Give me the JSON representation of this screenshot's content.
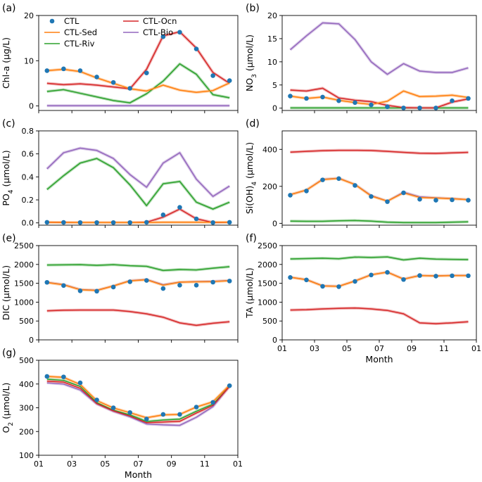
{
  "colors": {
    "CTL": "#1f77b4",
    "CTL-Sed": "#ff7f0e",
    "CTL-Riv": "#2ca02c",
    "CTL-Ocn": "#d62728",
    "CTL-Bio": "#9467bd",
    "spread": "#cccccc"
  },
  "legend": [
    "CTL",
    "CTL-Sed",
    "CTL-Riv",
    "CTL-Ocn",
    "CTL-Bio"
  ],
  "xticks": [
    "01",
    "03",
    "05",
    "07",
    "09",
    "11",
    "01"
  ],
  "xlabel": "Month",
  "chart_data": [
    {
      "type": "line",
      "panel": "(a)",
      "ylabel": "Chl-a (μg/L)",
      "ylim": [
        -1,
        20
      ],
      "yticks": [
        0,
        10,
        20
      ],
      "legend_shown": true,
      "x": [
        1.5,
        2.5,
        3.5,
        4.5,
        5.5,
        6.5,
        7.5,
        8.5,
        9.5,
        10.5,
        11.5,
        12.5
      ],
      "series": [
        {
          "name": "CTL",
          "values": [
            7.8,
            8.2,
            7.8,
            6.4,
            5.2,
            3.9,
            7.3,
            15.3,
            16.3,
            12.6,
            6.7,
            5.6
          ]
        },
        {
          "name": "CTL-Sed",
          "values": [
            7.8,
            8.1,
            7.6,
            6.2,
            5.0,
            3.8,
            3.3,
            4.6,
            3.5,
            3.0,
            3.4,
            5.1
          ]
        },
        {
          "name": "CTL-Riv",
          "values": [
            3.2,
            3.6,
            2.8,
            2.0,
            1.2,
            0.7,
            2.7,
            5.5,
            9.3,
            7.0,
            2.5,
            1.8
          ]
        },
        {
          "name": "CTL-Ocn",
          "values": [
            5.0,
            4.7,
            4.9,
            4.6,
            4.2,
            3.8,
            8.1,
            15.5,
            16.4,
            12.8,
            7.4,
            5.0
          ]
        },
        {
          "name": "CTL-Bio",
          "values": [
            0.05,
            0.05,
            0.05,
            0.05,
            0.05,
            0.05,
            0.05,
            0.05,
            0.05,
            0.05,
            0.05,
            0.05
          ]
        }
      ]
    },
    {
      "type": "line",
      "panel": "(b)",
      "ylabel": "NO3 (μmol/L)",
      "ylabel_main": "NO",
      "ylabel_sub": "3",
      "ylabel_tail": " (μmol/L)",
      "ylim": [
        -0.5,
        20
      ],
      "yticks": [
        0,
        5,
        10,
        15,
        20
      ],
      "x": [
        1.5,
        2.5,
        3.5,
        4.5,
        5.5,
        6.5,
        7.5,
        8.5,
        9.5,
        10.5,
        11.5,
        12.5
      ],
      "series": [
        {
          "name": "CTL",
          "values": [
            2.6,
            2.1,
            2.4,
            1.6,
            1.2,
            0.7,
            0.3,
            0.05,
            0.05,
            0.05,
            1.6,
            2.1
          ]
        },
        {
          "name": "CTL-Sed",
          "values": [
            2.6,
            2.1,
            2.4,
            1.7,
            1.2,
            0.8,
            1.5,
            3.7,
            2.5,
            2.6,
            2.8,
            2.3
          ]
        },
        {
          "name": "CTL-Riv",
          "values": [
            0.05,
            0.05,
            0.05,
            0.05,
            0.05,
            0.05,
            0.05,
            0.05,
            0.05,
            0.05,
            0.05,
            0.05
          ]
        },
        {
          "name": "CTL-Ocn",
          "values": [
            3.9,
            3.7,
            4.3,
            2.2,
            1.7,
            1.4,
            0.6,
            0.1,
            0.05,
            0.05,
            1.3,
            2.0
          ]
        },
        {
          "name": "CTL-Bio",
          "values": [
            12.6,
            15.6,
            18.4,
            18.2,
            14.8,
            10.0,
            7.3,
            9.6,
            8.0,
            7.7,
            7.7,
            8.7
          ]
        }
      ]
    },
    {
      "type": "line",
      "panel": "(c)",
      "ylabel": "PO4 (μmol/L)",
      "ylabel_main": "PO",
      "ylabel_sub": "4",
      "ylabel_tail": " (μmol/L)",
      "ylim": [
        -0.02,
        0.8
      ],
      "yticks": [
        0.0,
        0.2,
        0.4,
        0.6,
        0.8
      ],
      "ytick_labels": [
        "0.0",
        "0.2",
        "0.4",
        "0.6",
        "0.8"
      ],
      "x": [
        1.5,
        2.5,
        3.5,
        4.5,
        5.5,
        6.5,
        7.5,
        8.5,
        9.5,
        10.5,
        11.5,
        12.5
      ],
      "series": [
        {
          "name": "CTL",
          "values": [
            0.005,
            0.004,
            0.003,
            0.003,
            0.003,
            0.003,
            0.005,
            0.07,
            0.135,
            0.035,
            0.003,
            0.005
          ]
        },
        {
          "name": "CTL-Sed",
          "values": [
            0.005,
            0.004,
            0.003,
            0.003,
            0.003,
            0.003,
            0.003,
            0.005,
            0.005,
            0.005,
            0.005,
            0.005
          ]
        },
        {
          "name": "CTL-Riv",
          "values": [
            0.29,
            0.41,
            0.52,
            0.56,
            0.48,
            0.33,
            0.15,
            0.34,
            0.36,
            0.18,
            0.12,
            0.18
          ]
        },
        {
          "name": "CTL-Ocn",
          "values": [
            0.005,
            0.004,
            0.003,
            0.003,
            0.003,
            0.003,
            0.005,
            0.05,
            0.12,
            0.035,
            0.003,
            0.005
          ]
        },
        {
          "name": "CTL-Bio",
          "values": [
            0.47,
            0.61,
            0.65,
            0.63,
            0.56,
            0.42,
            0.31,
            0.52,
            0.61,
            0.38,
            0.23,
            0.32
          ]
        }
      ]
    },
    {
      "type": "line",
      "panel": "(d)",
      "ylabel": "Si(OH)4 (μmol/L)",
      "ylabel_main": "Si(OH)",
      "ylabel_sub": "4",
      "ylabel_tail": " (μmol/L)",
      "ylim": [
        -10,
        500
      ],
      "yticks": [
        0,
        200,
        400
      ],
      "x": [
        1.5,
        2.5,
        3.5,
        4.5,
        5.5,
        6.5,
        7.5,
        8.5,
        9.5,
        10.5,
        11.5,
        12.5
      ],
      "series": [
        {
          "name": "CTL",
          "values": [
            152,
            175,
            235,
            242,
            205,
            145,
            117,
            165,
            130,
            125,
            127,
            125
          ]
        },
        {
          "name": "CTL-Sed",
          "values": [
            155,
            180,
            237,
            243,
            210,
            148,
            120,
            165,
            140,
            137,
            133,
            128
          ]
        },
        {
          "name": "CTL-Riv",
          "values": [
            12,
            11,
            11,
            14,
            15,
            12,
            6,
            4,
            4,
            4,
            6,
            8
          ]
        },
        {
          "name": "CTL-Ocn",
          "values": [
            385,
            389,
            393,
            395,
            395,
            394,
            389,
            384,
            379,
            378,
            381,
            384
          ]
        },
        {
          "name": "CTL-Bio",
          "values": [
            155,
            180,
            238,
            244,
            210,
            150,
            120,
            168,
            143,
            138,
            134,
            128
          ]
        }
      ]
    },
    {
      "type": "line",
      "panel": "(e)",
      "ylabel": "DIC (μmol/L)",
      "ylim": [
        0,
        2500
      ],
      "yticks": [
        0,
        500,
        1000,
        1500,
        2000,
        2500
      ],
      "x": [
        1.5,
        2.5,
        3.5,
        4.5,
        5.5,
        6.5,
        7.5,
        8.5,
        9.5,
        10.5,
        11.5,
        12.5
      ],
      "series": [
        {
          "name": "CTL",
          "values": [
            1525,
            1440,
            1300,
            1290,
            1400,
            1540,
            1575,
            1360,
            1450,
            1450,
            1530,
            1560
          ]
        },
        {
          "name": "CTL-Sed",
          "values": [
            1520,
            1460,
            1330,
            1310,
            1430,
            1565,
            1595,
            1450,
            1530,
            1540,
            1545,
            1570
          ]
        },
        {
          "name": "CTL-Riv",
          "values": [
            1985,
            1990,
            1995,
            1975,
            1995,
            1965,
            1950,
            1840,
            1865,
            1855,
            1900,
            1940
          ]
        },
        {
          "name": "CTL-Ocn",
          "values": [
            770,
            785,
            790,
            790,
            790,
            750,
            690,
            600,
            450,
            385,
            440,
            480
          ]
        },
        {
          "name": "CTL-Bio",
          "values": [
            1525,
            1465,
            1335,
            1315,
            1430,
            1570,
            1600,
            1460,
            1530,
            1545,
            1550,
            1575
          ]
        }
      ]
    },
    {
      "type": "line",
      "panel": "(f)",
      "ylabel": "TA (μmol/L)",
      "ylim": [
        0,
        2500
      ],
      "yticks": [
        0,
        500,
        1000,
        1500,
        2000,
        2500
      ],
      "x": [
        1.5,
        2.5,
        3.5,
        4.5,
        5.5,
        6.5,
        7.5,
        8.5,
        9.5,
        10.5,
        11.5,
        12.5
      ],
      "series": [
        {
          "name": "CTL",
          "values": [
            1655,
            1590,
            1420,
            1410,
            1550,
            1720,
            1790,
            1600,
            1705,
            1690,
            1700,
            1700
          ]
        },
        {
          "name": "CTL-Sed",
          "values": [
            1660,
            1595,
            1430,
            1420,
            1560,
            1725,
            1795,
            1610,
            1705,
            1695,
            1705,
            1705
          ]
        },
        {
          "name": "CTL-Riv",
          "values": [
            2145,
            2155,
            2165,
            2150,
            2195,
            2185,
            2200,
            2120,
            2165,
            2140,
            2135,
            2130
          ]
        },
        {
          "name": "CTL-Ocn",
          "values": [
            790,
            800,
            820,
            835,
            845,
            820,
            780,
            690,
            450,
            430,
            450,
            480
          ]
        },
        {
          "name": "CTL-Bio",
          "values": [
            1660,
            1598,
            1432,
            1422,
            1562,
            1727,
            1797,
            1612,
            1707,
            1697,
            1707,
            1707
          ]
        }
      ]
    },
    {
      "type": "line",
      "panel": "(g)",
      "ylabel": "O2 (μmol/L)",
      "ylabel_main": "O",
      "ylabel_sub": "2",
      "ylabel_tail": " (μmol/L)",
      "ylim": [
        100,
        500
      ],
      "yticks": [
        100,
        200,
        300,
        400,
        500
      ],
      "x": [
        1.5,
        2.5,
        3.5,
        4.5,
        5.5,
        6.5,
        7.5,
        8.5,
        9.5,
        10.5,
        11.5,
        12.5
      ],
      "series": [
        {
          "name": "CTL",
          "values": [
            432,
            430,
            405,
            333,
            300,
            280,
            253,
            272,
            272,
            303,
            323,
            393
          ]
        },
        {
          "name": "CTL-Sed",
          "values": [
            432,
            428,
            398,
            330,
            299,
            279,
            258,
            270,
            272,
            303,
            325,
            395
          ]
        },
        {
          "name": "CTL-Riv",
          "values": [
            420,
            415,
            390,
            322,
            290,
            270,
            242,
            248,
            252,
            285,
            315,
            390
          ]
        },
        {
          "name": "CTL-Ocn",
          "values": [
            412,
            408,
            382,
            318,
            287,
            265,
            237,
            240,
            243,
            278,
            310,
            390
          ]
        },
        {
          "name": "CTL-Bio",
          "values": [
            405,
            400,
            375,
            316,
            285,
            262,
            232,
            228,
            226,
            260,
            305,
            390
          ]
        }
      ]
    }
  ]
}
